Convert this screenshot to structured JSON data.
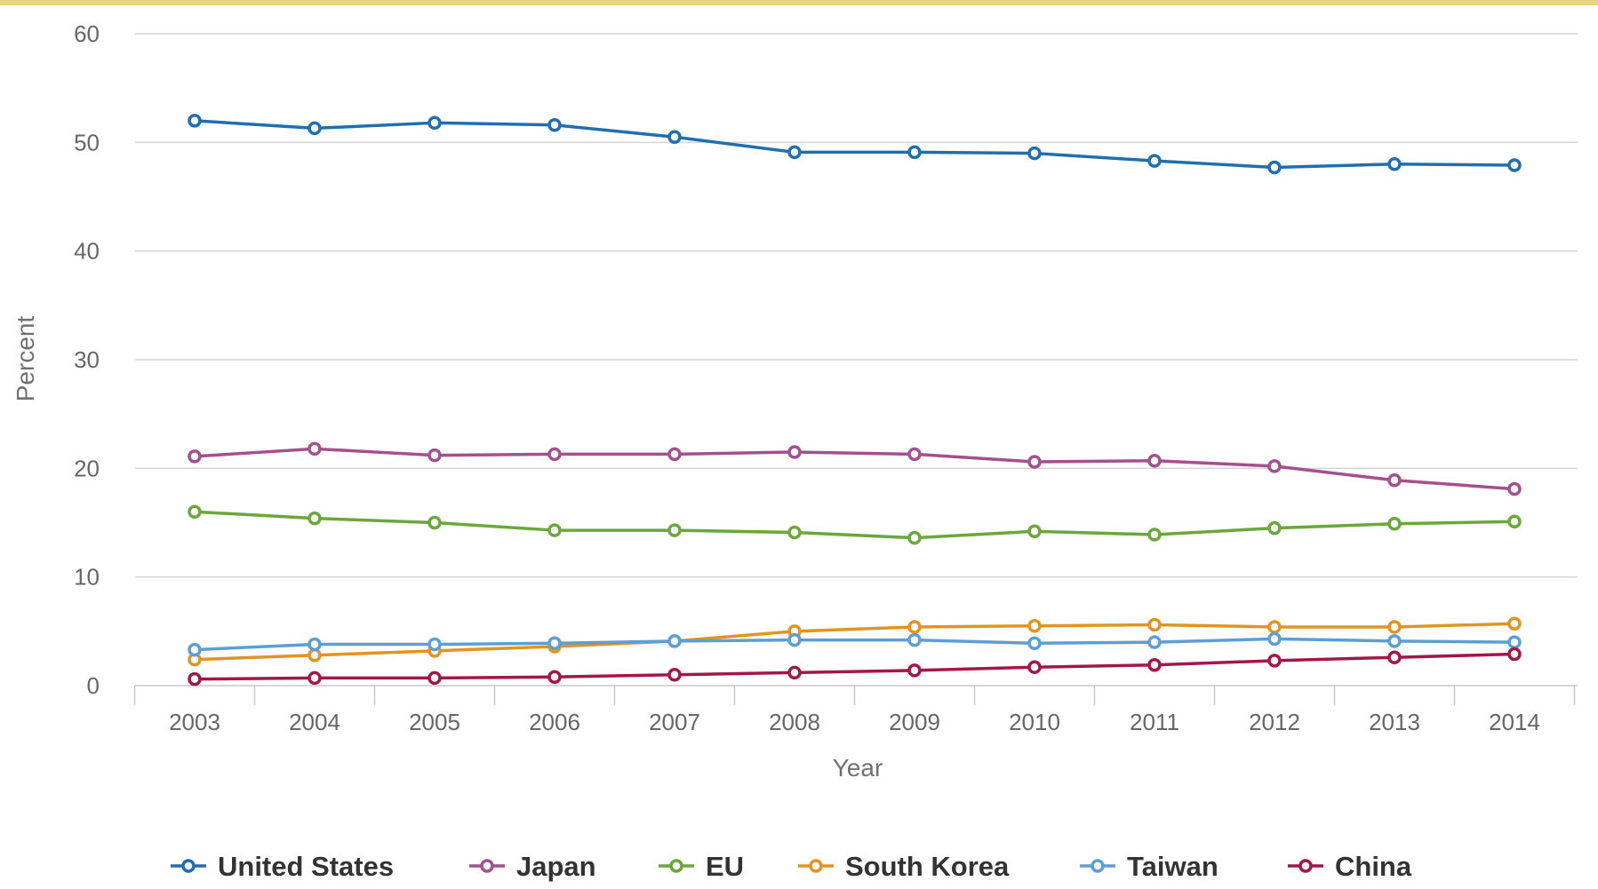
{
  "chart_data": {
    "type": "line",
    "title": "",
    "xlabel": "Year",
    "ylabel": "Percent",
    "x": [
      "2003",
      "2004",
      "2005",
      "2006",
      "2007",
      "2008",
      "2009",
      "2010",
      "2011",
      "2012",
      "2013",
      "2014"
    ],
    "yticks": [
      "0",
      "10",
      "20",
      "30",
      "40",
      "50",
      "60"
    ],
    "ylim": [
      0,
      60
    ],
    "grid": true,
    "legend_position": "bottom",
    "series": [
      {
        "name": "United States",
        "color": "#1f6fb0",
        "values": [
          52.0,
          51.3,
          51.8,
          51.6,
          50.5,
          49.1,
          49.1,
          49.0,
          48.3,
          47.7,
          48.0,
          47.9
        ]
      },
      {
        "name": "Japan",
        "color": "#a4508f",
        "values": [
          21.1,
          21.8,
          21.2,
          21.3,
          21.3,
          21.5,
          21.3,
          20.6,
          20.7,
          20.2,
          18.9,
          18.1
        ]
      },
      {
        "name": "EU",
        "color": "#6aa83a",
        "values": [
          16.0,
          15.4,
          15.0,
          14.3,
          14.3,
          14.1,
          13.6,
          14.2,
          13.9,
          14.5,
          14.9,
          15.1
        ]
      },
      {
        "name": "South Korea",
        "color": "#e2951e",
        "values": [
          2.4,
          2.8,
          3.2,
          3.6,
          4.1,
          5.0,
          5.4,
          5.5,
          5.6,
          5.4,
          5.4,
          5.7
        ]
      },
      {
        "name": "Taiwan",
        "color": "#5b9fd6",
        "values": [
          3.3,
          3.8,
          3.8,
          3.9,
          4.1,
          4.2,
          4.2,
          3.9,
          4.0,
          4.3,
          4.1,
          4.0
        ]
      },
      {
        "name": "China",
        "color": "#a3164a",
        "values": [
          0.6,
          0.7,
          0.7,
          0.8,
          1.0,
          1.2,
          1.4,
          1.7,
          1.9,
          2.3,
          2.6,
          2.9
        ]
      }
    ]
  }
}
